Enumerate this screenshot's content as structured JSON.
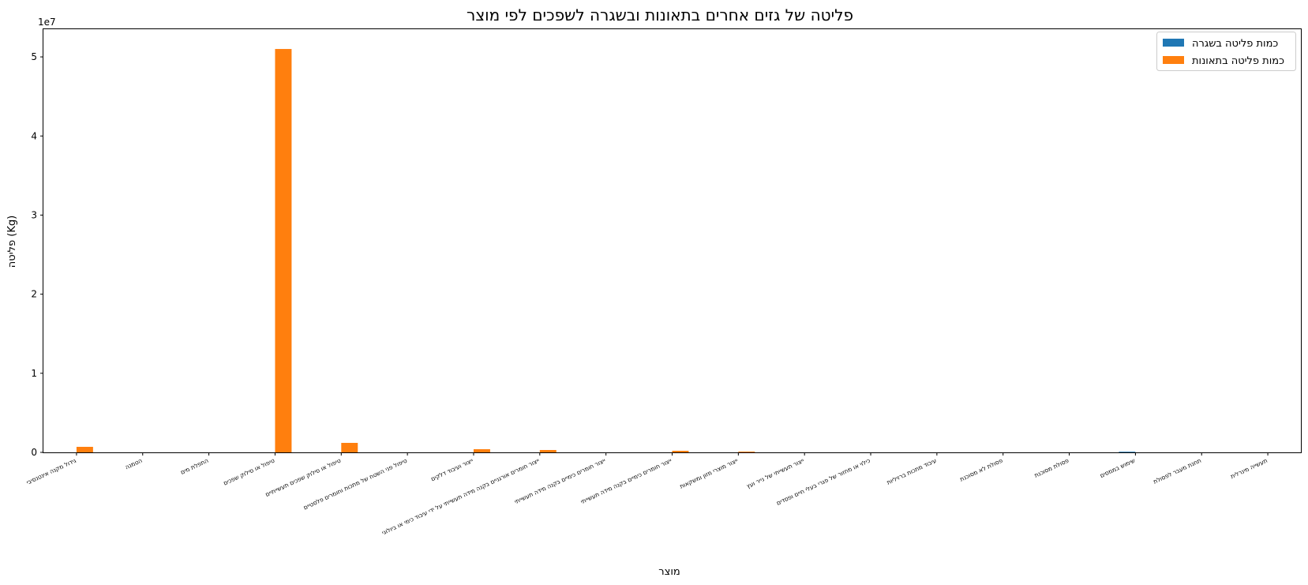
{
  "chart_data": {
    "type": "bar",
    "title": "פליטה של גזים אחרים בתאונות ובשגרה לשפכים לפי מוצר",
    "xlabel": "מוצר",
    "ylabel": "פליטה (Kg)",
    "y_multiplier_label": "1e7",
    "ylim": [
      0,
      53500000
    ],
    "yticks": [
      0,
      10000000,
      20000000,
      30000000,
      40000000,
      50000000
    ],
    "ytick_labels": [
      "0",
      "1",
      "2",
      "3",
      "4",
      "5"
    ],
    "legend_position": "top-right",
    "categories": [
      "גידול מקנה אינטנסיבי",
      "הטמנה",
      "התפלת מים",
      "טיפול או סילוק שפכים",
      "טיפול או סילוק שפכים תעשייתיים",
      "טיפול פני השטח של מתכות וחומרים פלסטיים",
      "ייצור ועיבוד דלקים",
      "ייצור חומרים אורגניים בקנה מידה תעשייתי על ידי עיבוד כימי או ביולוגי",
      "ייצור חומרים כימיים בקנה מידה תעשייתי",
      "ייצור חומרים כימיים בקנה מידה תעשייתי",
      "ייצור מוצרי מזון ומשקאות",
      "ייצור תעשייתי של נייר ועץ",
      "כילוי או מחזור של פגרי בעלי חיים ופסדים",
      "עיבוד מתכות ברזיליות",
      "פסולת לא מסוכנת",
      "פסולת מסוכנת",
      "שימוש בממסים",
      "תחנת מעבר לפסולת",
      "תעשייה מינרלית"
    ],
    "series": [
      {
        "name": "כמות פליטה בשגרה",
        "color": "#1f77b4",
        "values": [
          0,
          0,
          0,
          0,
          0,
          0,
          0,
          0,
          0,
          0,
          0,
          0,
          0,
          0,
          0,
          0,
          80000,
          0,
          0
        ]
      },
      {
        "name": "כמות פליטה בתאונות",
        "color": "#ff7f0e",
        "values": [
          700000,
          0,
          0,
          51000000,
          1200000,
          0,
          400000,
          300000,
          0,
          200000,
          100000,
          0,
          0,
          0,
          0,
          0,
          0,
          0,
          0
        ]
      }
    ]
  }
}
